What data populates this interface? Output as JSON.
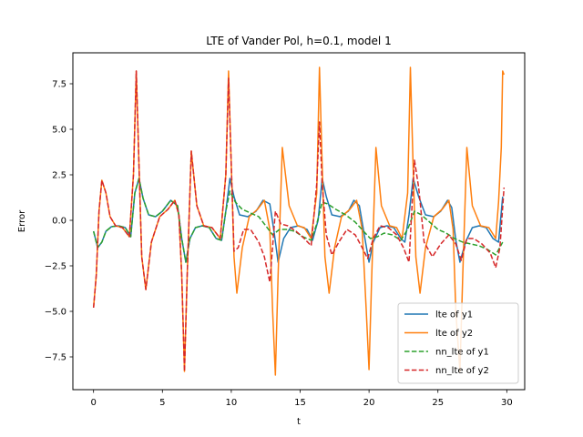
{
  "chart_data": {
    "type": "line",
    "title": "LTE of Vander Pol, h=0.1, model 1",
    "xlabel": "t",
    "ylabel": "Error",
    "xlim": [
      -1.5,
      31.3
    ],
    "ylim": [
      -9.3,
      9.2
    ],
    "xticks": [
      0,
      5,
      10,
      15,
      20,
      25,
      30
    ],
    "yticks": [
      -7.5,
      -5.0,
      -2.5,
      0.0,
      2.5,
      5.0,
      7.5
    ],
    "xtick_labels": [
      "0",
      "5",
      "10",
      "15",
      "20",
      "25",
      "30"
    ],
    "ytick_labels": [
      "−7.5",
      "−5.0",
      "−2.5",
      "0.0",
      "2.5",
      "5.0",
      "7.5"
    ],
    "grid": false,
    "legend_position": "lower-right",
    "series": [
      {
        "name": "lte of y1",
        "color": "#1f77b4",
        "dash": "solid",
        "x": [
          0,
          0.3,
          0.6,
          0.9,
          1.3,
          1.8,
          2.3,
          2.7,
          3.0,
          3.3,
          3.6,
          4.0,
          4.5,
          5.0,
          5.6,
          6.1,
          6.4,
          6.7,
          7.0,
          7.4,
          7.9,
          8.4,
          8.9,
          9.3,
          9.6,
          9.9,
          10.2,
          10.6,
          11.2,
          11.8,
          12.3,
          12.8,
          13.1,
          13.4,
          13.8,
          14.3,
          14.9,
          15.5,
          15.9,
          16.3,
          16.6,
          16.9,
          17.3,
          17.9,
          18.5,
          18.9,
          19.3,
          19.7,
          20.0,
          20.3,
          20.8,
          21.3,
          21.8,
          22.3,
          22.6,
          22.9,
          23.2,
          23.6,
          24.1,
          24.7,
          25.2,
          25.7,
          26.0,
          26.3,
          26.6,
          27.0,
          27.5,
          28.0,
          28.5,
          29.0,
          29.4,
          29.7
        ],
        "y": [
          -0.6,
          -1.5,
          -1.2,
          -0.6,
          -0.35,
          -0.3,
          -0.4,
          -0.9,
          1.5,
          2.3,
          1.2,
          0.3,
          0.2,
          0.5,
          1.1,
          0.8,
          -1.0,
          -2.3,
          -1.0,
          -0.4,
          -0.3,
          -0.4,
          -1.0,
          -1.1,
          0.5,
          2.3,
          1.3,
          0.3,
          0.2,
          0.5,
          1.1,
          0.9,
          -0.6,
          -2.3,
          -1.0,
          -0.4,
          -0.3,
          -0.5,
          -1.1,
          0.0,
          2.3,
          1.3,
          0.3,
          0.2,
          0.5,
          1.1,
          0.8,
          -1.0,
          -2.3,
          -1.2,
          -0.4,
          -0.3,
          -0.4,
          -1.0,
          -1.2,
          0.3,
          2.3,
          1.3,
          0.3,
          0.2,
          0.5,
          1.1,
          0.7,
          -1.1,
          -2.3,
          -1.2,
          -0.4,
          -0.3,
          -0.4,
          -1.0,
          -1.2,
          1.3
        ]
      },
      {
        "name": "lte of y2",
        "color": "#ff7f0e",
        "dash": "solid",
        "x": [
          0,
          0.2,
          0.4,
          0.6,
          0.9,
          1.2,
          1.6,
          2.1,
          2.6,
          2.9,
          3.1,
          3.3,
          3.5,
          3.8,
          4.2,
          4.8,
          5.4,
          5.9,
          6.2,
          6.4,
          6.6,
          6.8,
          7.1,
          7.5,
          8.0,
          8.6,
          9.2,
          9.6,
          9.8,
          10.0,
          10.2,
          10.4,
          10.8,
          11.3,
          11.9,
          12.4,
          12.8,
          13.0,
          13.2,
          13.4,
          13.7,
          14.2,
          14.8,
          15.3,
          15.8,
          16.2,
          16.4,
          16.6,
          16.8,
          17.1,
          17.5,
          18.0,
          18.6,
          19.1,
          19.5,
          19.8,
          20.0,
          20.2,
          20.5,
          20.9,
          21.5,
          22.0,
          22.4,
          22.8,
          23.0,
          23.2,
          23.4,
          23.7,
          24.1,
          24.7,
          25.3,
          25.8,
          26.1,
          26.3,
          26.6,
          26.8,
          27.1,
          27.5,
          28.1,
          28.7,
          29.2,
          29.4,
          29.6,
          29.7,
          29.8
        ],
        "y": [
          -4.8,
          -3.0,
          0.5,
          2.2,
          1.5,
          0.2,
          -0.3,
          -0.4,
          -0.9,
          2.5,
          8.2,
          3.0,
          -2.0,
          -3.8,
          -1.2,
          0.2,
          0.6,
          1.1,
          0.3,
          -3.0,
          -8.3,
          -3.0,
          3.8,
          0.8,
          -0.3,
          -0.4,
          -1.0,
          2.5,
          8.2,
          3.0,
          -2.0,
          -4.0,
          -1.5,
          0.2,
          0.6,
          1.1,
          -0.5,
          -5.0,
          -8.5,
          -3.0,
          4.0,
          0.8,
          -0.3,
          -0.4,
          -1.0,
          1.5,
          8.4,
          3.0,
          -2.0,
          -4.0,
          -1.5,
          0.2,
          0.6,
          1.1,
          -0.5,
          -5.0,
          -8.2,
          -3.0,
          4.0,
          0.8,
          -0.3,
          -0.4,
          -1.0,
          1.5,
          8.4,
          3.0,
          -2.0,
          -4.0,
          -1.5,
          0.2,
          0.6,
          1.1,
          -0.5,
          -5.0,
          -8.3,
          -3.0,
          4.0,
          0.8,
          -0.3,
          -0.4,
          -1.0,
          1.0,
          4.0,
          8.2,
          8.0
        ]
      },
      {
        "name": "nn_lte of y1",
        "color": "#2ca02c",
        "dash": "dashed",
        "x": [
          0,
          0.3,
          0.6,
          0.9,
          1.3,
          1.8,
          2.3,
          2.7,
          3.0,
          3.3,
          3.6,
          4.0,
          4.5,
          5.0,
          5.6,
          6.1,
          6.4,
          6.7,
          7.0,
          7.4,
          7.9,
          8.4,
          8.9,
          9.3,
          9.6,
          9.9,
          10.3,
          10.8,
          11.4,
          12.0,
          12.5,
          13.0,
          13.5,
          14.0,
          14.6,
          15.2,
          15.8,
          16.2,
          16.6,
          17.0,
          17.6,
          18.3,
          19.0,
          19.6,
          20.1,
          20.6,
          21.1,
          21.7,
          22.3,
          22.8,
          23.3,
          23.8,
          24.4,
          25.0,
          25.6,
          26.2,
          26.8,
          27.4,
          28.0,
          28.6,
          29.2,
          29.7
        ],
        "y": [
          -0.6,
          -1.5,
          -1.2,
          -0.6,
          -0.35,
          -0.3,
          -0.4,
          -0.9,
          1.5,
          2.3,
          1.2,
          0.3,
          0.2,
          0.5,
          1.1,
          0.8,
          -1.0,
          -2.3,
          -1.0,
          -0.4,
          -0.3,
          -0.4,
          -1.0,
          -1.1,
          0.5,
          1.6,
          1.0,
          0.6,
          0.4,
          0.2,
          -0.3,
          -0.8,
          -0.5,
          -0.5,
          -0.6,
          -0.9,
          -1.1,
          -0.2,
          1.0,
          0.9,
          0.6,
          0.3,
          -0.1,
          -0.6,
          -1.0,
          -0.9,
          -0.7,
          -0.8,
          -1.1,
          -0.5,
          0.5,
          0.3,
          -0.1,
          -0.5,
          -0.7,
          -1.0,
          -1.2,
          -1.3,
          -1.4,
          -1.6,
          -1.9,
          -1.2
        ]
      },
      {
        "name": "nn_lte of y2",
        "color": "#d62728",
        "dash": "dashed",
        "x": [
          0,
          0.2,
          0.4,
          0.6,
          0.9,
          1.2,
          1.6,
          2.1,
          2.6,
          2.9,
          3.1,
          3.3,
          3.5,
          3.8,
          4.2,
          4.8,
          5.4,
          5.9,
          6.2,
          6.4,
          6.6,
          6.8,
          7.1,
          7.5,
          8.0,
          8.6,
          9.2,
          9.6,
          9.8,
          10.0,
          10.2,
          10.5,
          10.9,
          11.4,
          12.0,
          12.4,
          12.8,
          13.2,
          13.6,
          14.1,
          14.7,
          15.3,
          15.8,
          16.2,
          16.4,
          16.6,
          16.9,
          17.3,
          17.8,
          18.4,
          19.0,
          19.5,
          19.9,
          20.3,
          20.8,
          21.4,
          22.0,
          22.5,
          22.9,
          23.1,
          23.3,
          23.6,
          24.0,
          24.6,
          25.2,
          25.8,
          26.3,
          26.7,
          27.1,
          27.6,
          28.2,
          28.8,
          29.2,
          29.5,
          29.8
        ],
        "y": [
          -4.8,
          -3.0,
          0.5,
          2.2,
          1.5,
          0.2,
          -0.3,
          -0.4,
          -0.9,
          2.5,
          8.2,
          3.0,
          -2.0,
          -3.8,
          -1.2,
          0.2,
          0.6,
          1.1,
          0.3,
          -3.0,
          -8.3,
          -3.0,
          3.8,
          0.8,
          -0.3,
          -0.4,
          -1.0,
          2.5,
          7.8,
          3.0,
          -1.7,
          -1.5,
          -0.5,
          -0.5,
          -1.2,
          -2.0,
          -3.4,
          0.5,
          -0.2,
          -0.3,
          -0.6,
          -1.0,
          -1.4,
          2.0,
          5.4,
          2.0,
          -0.8,
          -1.9,
          -1.2,
          -0.5,
          -0.8,
          -1.5,
          -2.1,
          -1.0,
          -0.3,
          -0.4,
          -0.8,
          -1.5,
          -2.3,
          0.5,
          3.3,
          1.8,
          -1.2,
          -2.0,
          -1.3,
          -0.8,
          -1.3,
          -2.2,
          -1.0,
          -1.0,
          -1.3,
          -1.8,
          -2.6,
          -1.5,
          1.8
        ]
      }
    ]
  }
}
